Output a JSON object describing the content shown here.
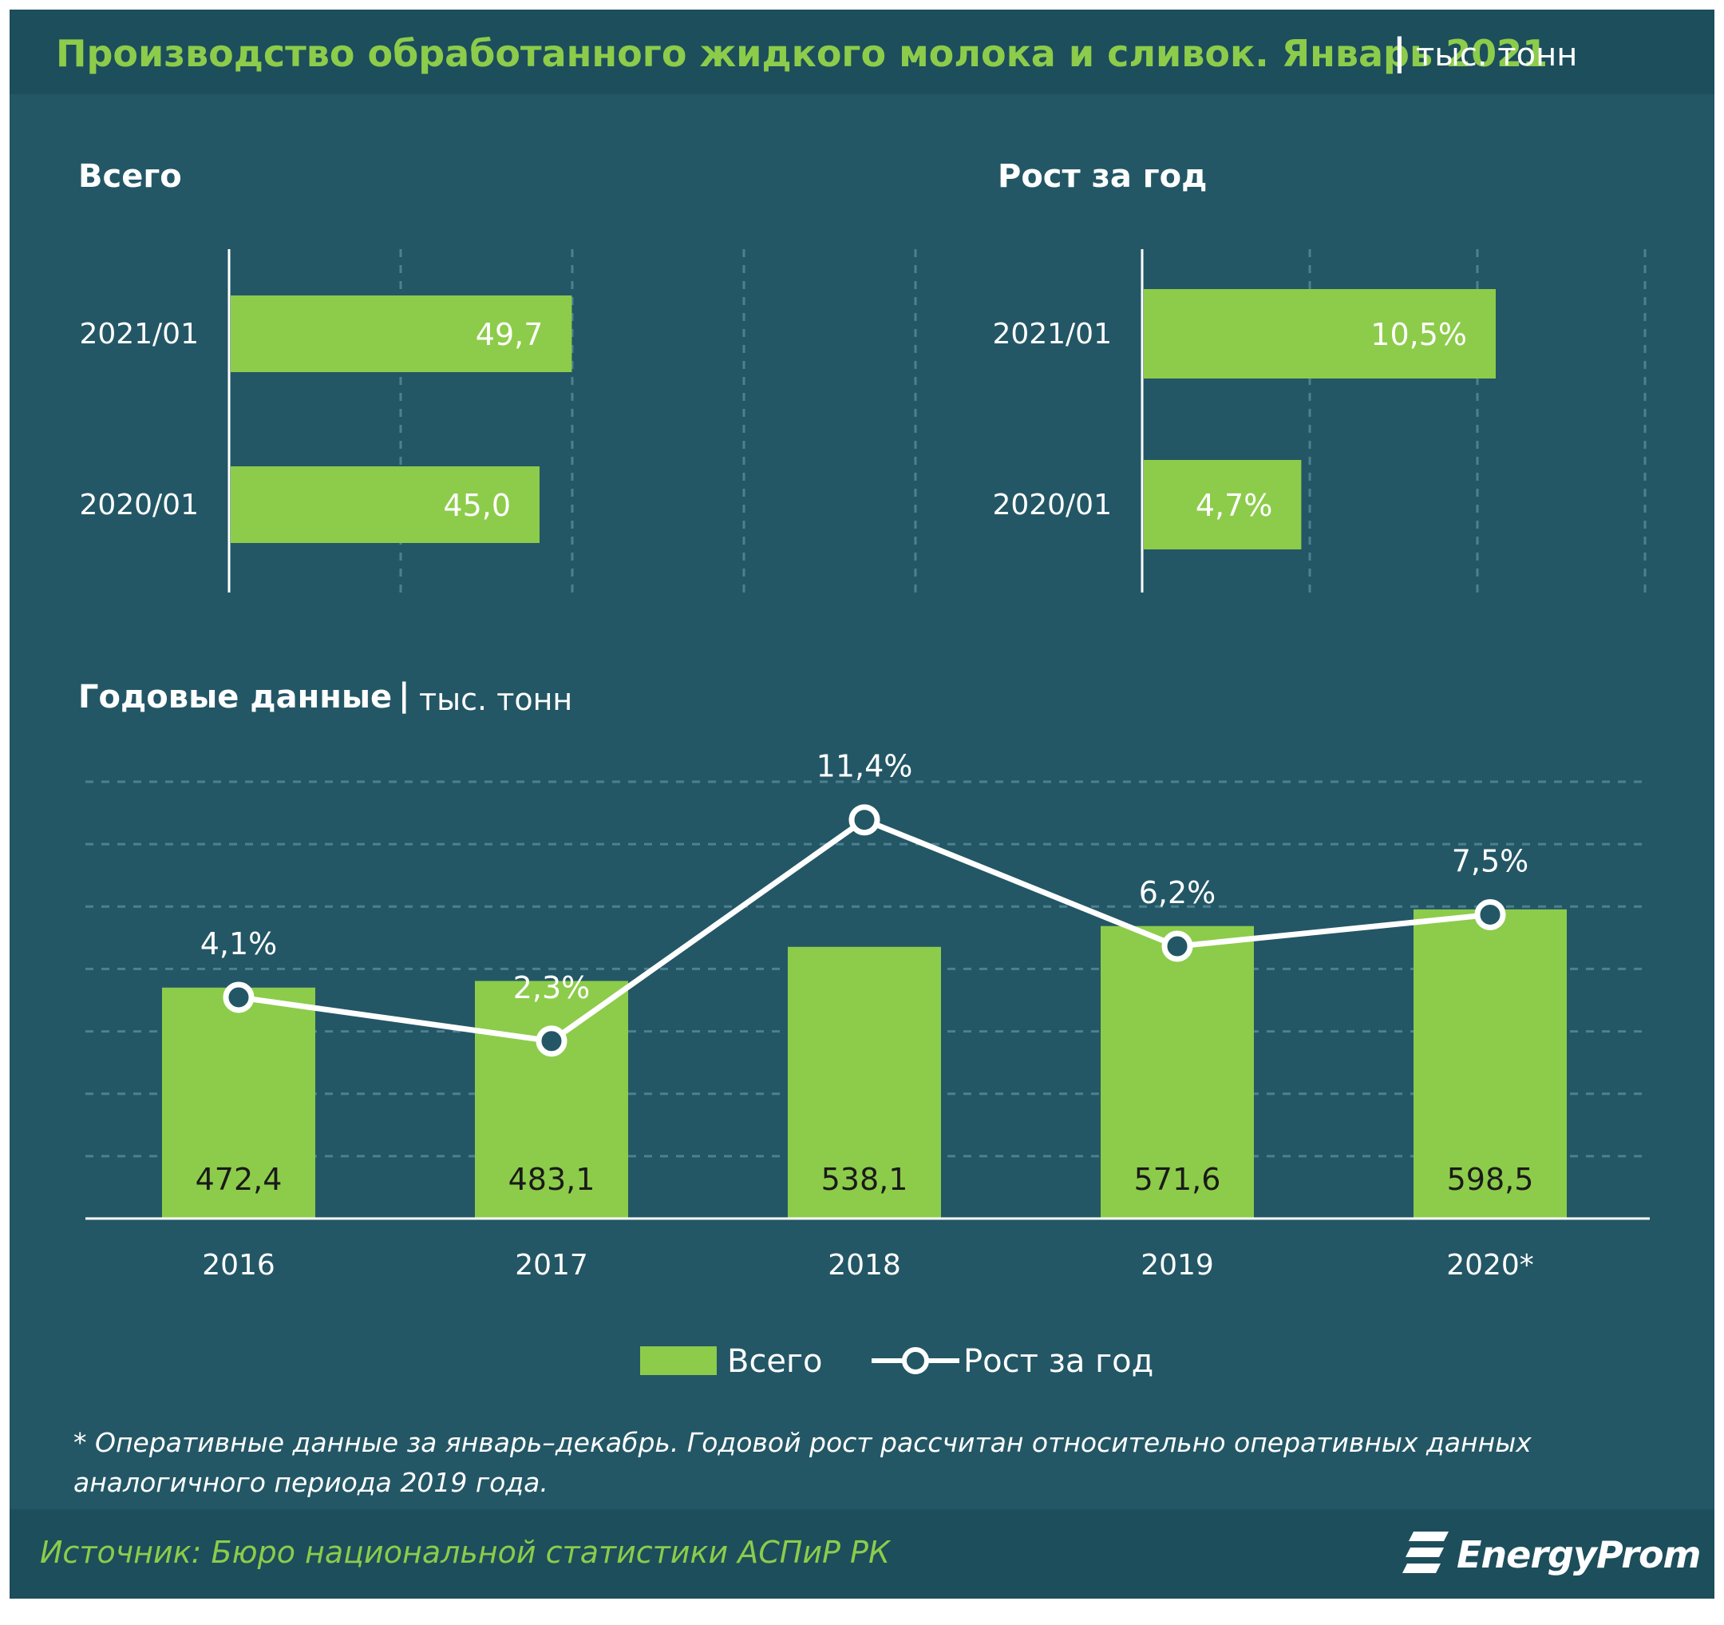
{
  "title": {
    "main": "Производство обработанного жидкого молока и сливок. Январь 2021",
    "separator": "|",
    "unit": "тыс. тонн"
  },
  "panels": {
    "total_label": "Всего",
    "growth_label": "Рост за год",
    "annual_label": "Годовые данные",
    "annual_separator": "|",
    "annual_unit": "тыс. тонн"
  },
  "chart_data": [
    {
      "type": "bar",
      "orientation": "horizontal",
      "title": "Всего",
      "categories": [
        "2021/01",
        "2020/01"
      ],
      "values": [
        49.7,
        45.0
      ],
      "value_labels": [
        "49,7",
        "45,0"
      ],
      "xlim": [
        0,
        100
      ],
      "grid": true
    },
    {
      "type": "bar",
      "orientation": "horizontal",
      "title": "Рост за год",
      "categories": [
        "2021/01",
        "2020/01"
      ],
      "values": [
        10.5,
        4.7
      ],
      "value_labels": [
        "10,5%",
        "4,7%"
      ],
      "xlim": [
        0,
        15
      ],
      "grid": true
    },
    {
      "type": "bar",
      "title": "Годовые данные",
      "categories": [
        "2016",
        "2017",
        "2018",
        "2019",
        "2020*"
      ],
      "series": [
        {
          "name": "Всего",
          "type": "bar",
          "values": [
            472.4,
            483.1,
            538.1,
            571.6,
            598.5
          ],
          "value_labels": [
            "472,4",
            "483,1",
            "538,1",
            "571,6",
            "598,5"
          ]
        },
        {
          "name": "Рост за год",
          "type": "line",
          "values": [
            4.1,
            2.3,
            11.4,
            6.2,
            7.5
          ],
          "value_labels": [
            "4,1%",
            "2,3%",
            "11,4%",
            "6,2%",
            "7,5%"
          ]
        }
      ],
      "ylim_bars": [
        0,
        700
      ],
      "ylim_line": [
        -5,
        13
      ],
      "grid": true,
      "legend": "bottom-center"
    }
  ],
  "legend": {
    "total": "Всего",
    "growth": "Рост за год"
  },
  "footnote": "* Оперативные данные за январь–декабрь. Годовой рост рассчитан относительно оперативных данных аналогичного периода 2019 года.",
  "source": "Источник: Бюро национальной  статистики АСПиР РК",
  "logo": "EnergyProm",
  "colors": {
    "background": "#235766",
    "header": "#1d4e5c",
    "bar": "#8ccc4a",
    "line": "#ffffff",
    "title": "#8ccc4a"
  }
}
